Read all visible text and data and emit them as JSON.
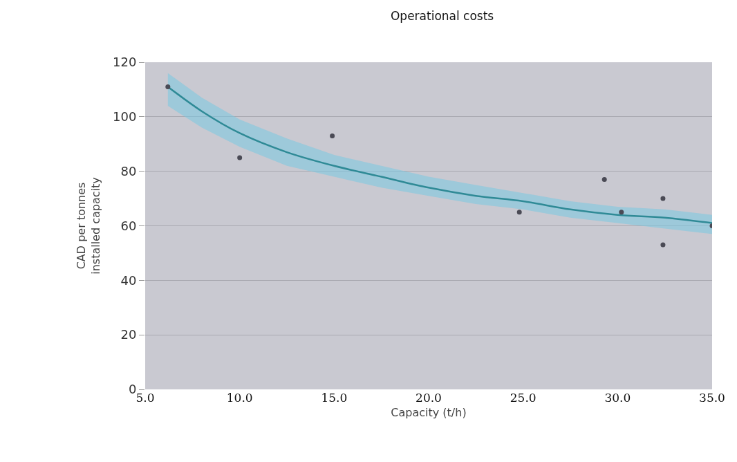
{
  "chart_data": {
    "type": "scatter",
    "title": "Operational costs",
    "xlabel": "Capacity (t/h)",
    "ylabel": "CAD per tonnes\ninstalled capacity",
    "xlim": [
      5,
      35
    ],
    "xticks": [
      {
        "value": 5,
        "label": "5.0"
      },
      {
        "value": 10,
        "label": "10.0"
      },
      {
        "value": 15,
        "label": "15.0"
      },
      {
        "value": 20,
        "label": "20.0"
      },
      {
        "value": 25,
        "label": "25.0"
      },
      {
        "value": 30,
        "label": "30.0"
      },
      {
        "value": 35,
        "label": "35.0"
      }
    ],
    "ylim": [
      0,
      120
    ],
    "yticks": [
      0,
      20,
      40,
      60,
      80,
      100,
      120
    ],
    "grid": "y",
    "series": [
      {
        "marker": "circle",
        "color": "#4a4a55",
        "x": [
          6.2,
          10.0,
          14.9,
          24.8,
          29.3,
          30.2,
          32.4,
          32.4,
          35.0
        ],
        "values": [
          111,
          85,
          93,
          65,
          77,
          65,
          70,
          53,
          60
        ]
      },
      {
        "type": "line",
        "color": "#2f8a96",
        "x": [
          6.2,
          8,
          10,
          12.5,
          15,
          17.5,
          20,
          22.5,
          25,
          27.5,
          30,
          32.5,
          35
        ],
        "values": [
          111,
          102,
          94,
          87,
          82,
          78,
          74,
          71,
          69,
          66,
          64,
          63,
          61
        ],
        "lower": [
          104,
          96,
          89,
          82,
          78,
          74,
          71,
          68,
          66,
          63,
          61,
          59,
          57
        ],
        "upper": [
          116,
          107,
          99,
          92,
          86,
          82,
          78,
          75,
          72,
          69,
          67,
          66,
          64
        ]
      }
    ]
  }
}
